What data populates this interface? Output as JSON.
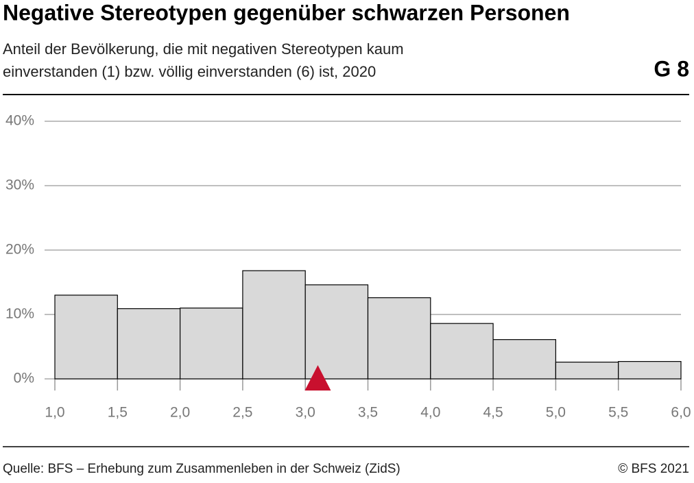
{
  "chart_data": {
    "type": "histogram",
    "title": "Negative Stereotypen gegenüber schwarzen Personen",
    "subtitle": [
      "Anteil der Bevölkerung, die mit negativen Stereotypen kaum",
      "einverstanden (1) bzw. völlig einverstanden (6) ist, 2020"
    ],
    "badge": "G 8",
    "bins": [
      1.0,
      1.5,
      2.0,
      2.5,
      3.0,
      3.5,
      4.0,
      4.5,
      5.0,
      5.5,
      6.0
    ],
    "counts": [
      13.0,
      10.9,
      11.0,
      16.8,
      14.6,
      12.6,
      8.6,
      6.1,
      2.6,
      2.7
    ],
    "color": "#d9d9d9",
    "mean": 3.1,
    "mean_color": "#c8102e",
    "xlim": [
      1.0,
      6.0
    ],
    "xticks": [
      {
        "value": 1.0,
        "label": "1,0"
      },
      {
        "value": 1.5,
        "label": "1,5"
      },
      {
        "value": 2.0,
        "label": "2,0"
      },
      {
        "value": 2.5,
        "label": "2,5"
      },
      {
        "value": 3.0,
        "label": "3,0"
      },
      {
        "value": 3.5,
        "label": "3,5"
      },
      {
        "value": 4.0,
        "label": "4,0"
      },
      {
        "value": 4.5,
        "label": "4,5"
      },
      {
        "value": 5.0,
        "label": "5,0"
      },
      {
        "value": 5.5,
        "label": "5,5"
      },
      {
        "value": 6.0,
        "label": "6,0"
      }
    ],
    "ylim": [
      0,
      40
    ],
    "yticks": [
      {
        "value": 0,
        "label": "0%"
      },
      {
        "value": 10,
        "label": "10%"
      },
      {
        "value": 20,
        "label": "20%"
      },
      {
        "value": 30,
        "label": "30%"
      },
      {
        "value": 40,
        "label": "40%"
      }
    ],
    "grid": true,
    "source": "Quelle: BFS – Erhebung zum Zusammenleben in der Schweiz (ZidS)",
    "copyright": "© BFS 2021"
  }
}
